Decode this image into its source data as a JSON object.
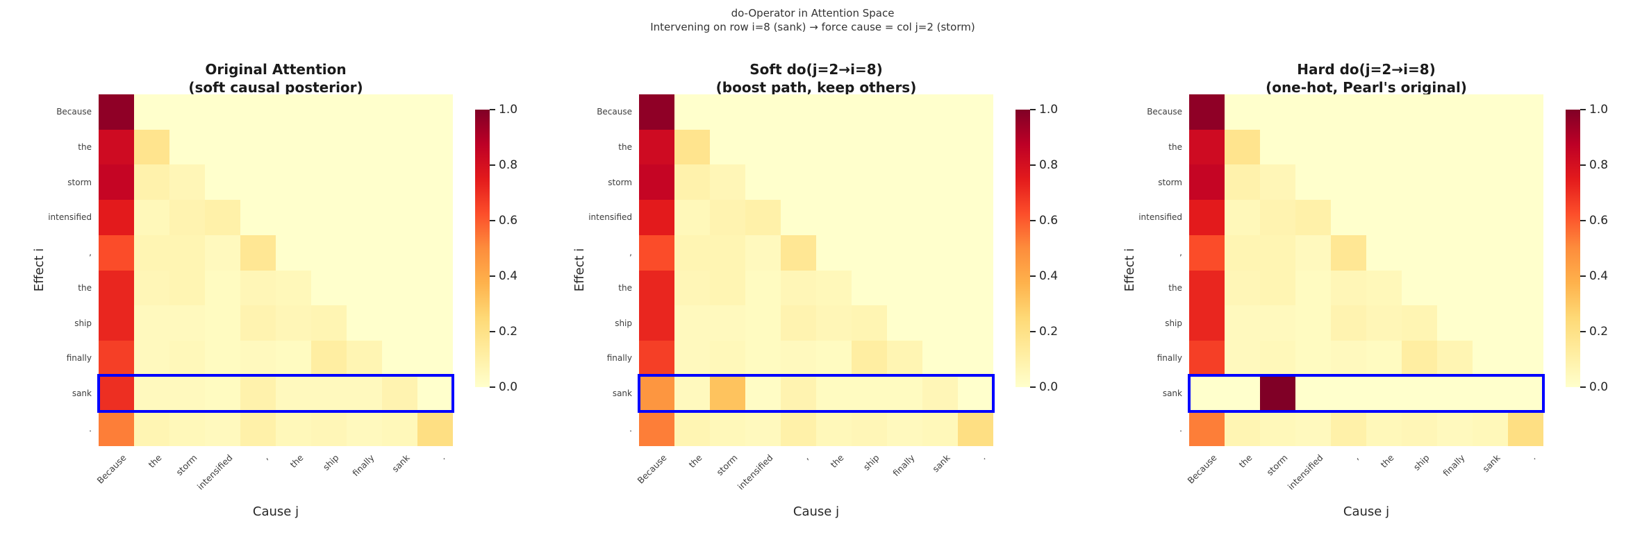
{
  "suptitle": {
    "line1": "do-Operator in Attention Space",
    "line2": "Intervening on row i=8 (sank) → force cause = col j=2 (storm)"
  },
  "axes": {
    "xlabel": "Cause j",
    "ylabel": "Effect i"
  },
  "tokens": [
    "Because",
    "the",
    "storm",
    "intensified",
    ",",
    "the",
    "ship",
    "finally",
    "sank",
    "."
  ],
  "colorbar": {
    "ticks": [
      "1.0",
      "0.8",
      "0.6",
      "0.4",
      "0.2",
      "0.0"
    ]
  },
  "colormap": {
    "name": "YlOrRd",
    "anchors": [
      "#ffffcc",
      "#ffeda0",
      "#fed976",
      "#feb24c",
      "#fd8d3c",
      "#fc4e2a",
      "#e31a1c",
      "#bd0026",
      "#800026"
    ]
  },
  "highlight": {
    "row_index": 8,
    "color": "#0000ff"
  },
  "chart_data": [
    {
      "type": "heatmap",
      "title_line1": "Original Attention",
      "title_line2": "(soft causal posterior)",
      "xlabel": "Cause j",
      "ylabel": "Effect i",
      "x": [
        "Because",
        "the",
        "storm",
        "intensified",
        ",",
        "the",
        "ship",
        "finally",
        "sank",
        "."
      ],
      "y": [
        "Because",
        "the",
        "storm",
        "intensified",
        ",",
        "the",
        "ship",
        "finally",
        "sank",
        "."
      ],
      "vmin": 0.0,
      "vmax": 1.0,
      "values": [
        [
          0.97,
          0.0,
          0.0,
          0.0,
          0.0,
          0.0,
          0.0,
          0.0,
          0.0,
          0.0
        ],
        [
          0.82,
          0.18,
          0.0,
          0.0,
          0.0,
          0.0,
          0.0,
          0.0,
          0.0,
          0.0
        ],
        [
          0.85,
          0.09,
          0.06,
          0.0,
          0.0,
          0.0,
          0.0,
          0.0,
          0.0,
          0.0
        ],
        [
          0.75,
          0.05,
          0.08,
          0.1,
          0.0,
          0.0,
          0.0,
          0.0,
          0.0,
          0.0
        ],
        [
          0.63,
          0.07,
          0.07,
          0.04,
          0.16,
          0.0,
          0.0,
          0.0,
          0.0,
          0.0
        ],
        [
          0.72,
          0.06,
          0.07,
          0.03,
          0.06,
          0.05,
          0.0,
          0.0,
          0.0,
          0.0
        ],
        [
          0.72,
          0.04,
          0.04,
          0.03,
          0.08,
          0.06,
          0.07,
          0.0,
          0.0,
          0.0
        ],
        [
          0.66,
          0.04,
          0.05,
          0.03,
          0.04,
          0.03,
          0.12,
          0.07,
          0.0,
          0.0
        ],
        [
          0.7,
          0.04,
          0.04,
          0.03,
          0.09,
          0.04,
          0.04,
          0.04,
          0.08,
          0.0
        ],
        [
          0.53,
          0.07,
          0.05,
          0.04,
          0.1,
          0.05,
          0.06,
          0.04,
          0.05,
          0.21
        ]
      ]
    },
    {
      "type": "heatmap",
      "title_line1": "Soft do(j=2→i=8)",
      "title_line2": "(boost path, keep others)",
      "xlabel": "Cause j",
      "ylabel": "Effect i",
      "x": [
        "Because",
        "the",
        "storm",
        "intensified",
        ",",
        "the",
        "ship",
        "finally",
        "sank",
        "."
      ],
      "y": [
        "Because",
        "the",
        "storm",
        "intensified",
        ",",
        "the",
        "ship",
        "finally",
        "sank",
        "."
      ],
      "vmin": 0.0,
      "vmax": 1.0,
      "values": [
        [
          0.97,
          0.0,
          0.0,
          0.0,
          0.0,
          0.0,
          0.0,
          0.0,
          0.0,
          0.0
        ],
        [
          0.82,
          0.18,
          0.0,
          0.0,
          0.0,
          0.0,
          0.0,
          0.0,
          0.0,
          0.0
        ],
        [
          0.85,
          0.09,
          0.06,
          0.0,
          0.0,
          0.0,
          0.0,
          0.0,
          0.0,
          0.0
        ],
        [
          0.75,
          0.05,
          0.08,
          0.1,
          0.0,
          0.0,
          0.0,
          0.0,
          0.0,
          0.0
        ],
        [
          0.63,
          0.07,
          0.07,
          0.04,
          0.16,
          0.0,
          0.0,
          0.0,
          0.0,
          0.0
        ],
        [
          0.72,
          0.06,
          0.07,
          0.03,
          0.06,
          0.05,
          0.0,
          0.0,
          0.0,
          0.0
        ],
        [
          0.72,
          0.04,
          0.04,
          0.03,
          0.08,
          0.06,
          0.07,
          0.0,
          0.0,
          0.0
        ],
        [
          0.66,
          0.04,
          0.05,
          0.03,
          0.04,
          0.03,
          0.12,
          0.07,
          0.0,
          0.0
        ],
        [
          0.47,
          0.04,
          0.32,
          0.02,
          0.08,
          0.03,
          0.03,
          0.03,
          0.06,
          0.0
        ],
        [
          0.53,
          0.07,
          0.05,
          0.04,
          0.1,
          0.05,
          0.06,
          0.04,
          0.05,
          0.21
        ]
      ]
    },
    {
      "type": "heatmap",
      "title_line1": "Hard do(j=2→i=8)",
      "title_line2": "(one-hot, Pearl's original)",
      "xlabel": "Cause j",
      "ylabel": "Effect i",
      "x": [
        "Because",
        "the",
        "storm",
        "intensified",
        ",",
        "the",
        "ship",
        "finally",
        "sank",
        "."
      ],
      "y": [
        "Because",
        "the",
        "storm",
        "intensified",
        ",",
        "the",
        "ship",
        "finally",
        "sank",
        "."
      ],
      "vmin": 0.0,
      "vmax": 1.0,
      "values": [
        [
          0.97,
          0.0,
          0.0,
          0.0,
          0.0,
          0.0,
          0.0,
          0.0,
          0.0,
          0.0
        ],
        [
          0.82,
          0.18,
          0.0,
          0.0,
          0.0,
          0.0,
          0.0,
          0.0,
          0.0,
          0.0
        ],
        [
          0.85,
          0.09,
          0.06,
          0.0,
          0.0,
          0.0,
          0.0,
          0.0,
          0.0,
          0.0
        ],
        [
          0.75,
          0.05,
          0.08,
          0.1,
          0.0,
          0.0,
          0.0,
          0.0,
          0.0,
          0.0
        ],
        [
          0.63,
          0.07,
          0.07,
          0.04,
          0.16,
          0.0,
          0.0,
          0.0,
          0.0,
          0.0
        ],
        [
          0.72,
          0.06,
          0.07,
          0.03,
          0.06,
          0.05,
          0.0,
          0.0,
          0.0,
          0.0
        ],
        [
          0.72,
          0.04,
          0.04,
          0.03,
          0.08,
          0.06,
          0.07,
          0.0,
          0.0,
          0.0
        ],
        [
          0.66,
          0.04,
          0.05,
          0.03,
          0.04,
          0.03,
          0.12,
          0.07,
          0.0,
          0.0
        ],
        [
          0.0,
          0.0,
          1.0,
          0.0,
          0.0,
          0.0,
          0.0,
          0.0,
          0.0,
          0.0
        ],
        [
          0.53,
          0.07,
          0.05,
          0.04,
          0.1,
          0.05,
          0.06,
          0.04,
          0.05,
          0.21
        ]
      ]
    }
  ]
}
